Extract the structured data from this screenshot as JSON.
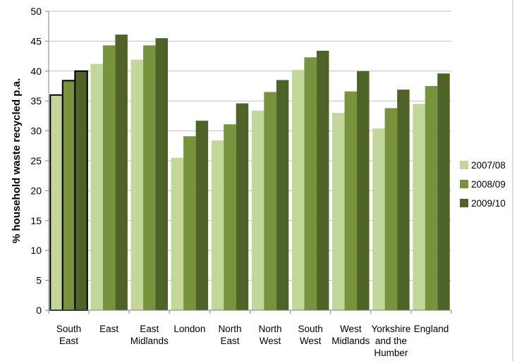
{
  "chart_data": {
    "type": "bar",
    "title": "",
    "xlabel": "",
    "ylabel": "% household waste recycled p.a.",
    "ylim": [
      0,
      50
    ],
    "yticks": [
      0,
      5,
      10,
      15,
      20,
      25,
      30,
      35,
      40,
      45,
      50
    ],
    "grid": true,
    "legend_position": "right",
    "categories": [
      [
        "South",
        "East"
      ],
      [
        "East"
      ],
      [
        "East",
        "Midlands"
      ],
      [
        "London"
      ],
      [
        "North",
        "East"
      ],
      [
        "North",
        "West"
      ],
      [
        "South",
        "West"
      ],
      [
        "West",
        "Midlands"
      ],
      [
        "Yorkshire",
        "and the",
        "Humber"
      ],
      [
        "England"
      ]
    ],
    "highlighted_category_index": 0,
    "series": [
      {
        "name": "2007/08",
        "color": "#c4d79b",
        "values": [
          36.0,
          41.2,
          41.9,
          25.5,
          28.4,
          33.4,
          40.2,
          33.0,
          30.4,
          34.5
        ]
      },
      {
        "name": "2008/09",
        "color": "#77933c",
        "values": [
          38.4,
          44.3,
          44.3,
          29.1,
          31.1,
          36.5,
          42.3,
          36.6,
          33.8,
          37.5
        ]
      },
      {
        "name": "2009/10",
        "color": "#4f6228",
        "values": [
          40.0,
          46.1,
          45.5,
          31.7,
          34.6,
          38.5,
          43.4,
          40.0,
          36.9,
          39.6
        ]
      }
    ]
  }
}
